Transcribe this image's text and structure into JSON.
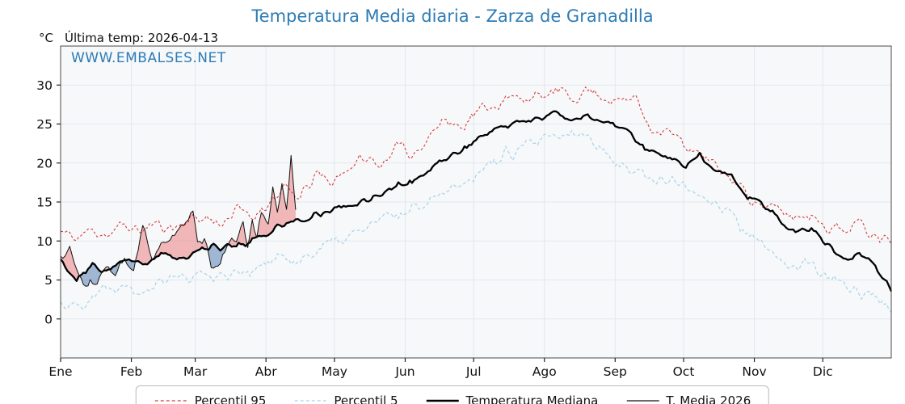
{
  "header": {
    "title": "Temperatura Media diaria - Zarza de Granadilla",
    "unit_label": "°C",
    "last_temp_label": "Última temp: 2026-04-13",
    "watermark": "WWW.EMBALSES.NET",
    "title_color": "#2d7cb5",
    "watermark_color": "#2d7cb5"
  },
  "chart_data": {
    "type": "line",
    "title": "Temperatura Media diaria - Zarza de Granadilla",
    "ylabel": "°C",
    "x_unit": "day_of_year",
    "x_range_days": [
      0,
      364
    ],
    "ylim": [
      -5,
      35
    ],
    "yticks": [
      0,
      5,
      10,
      15,
      20,
      25,
      30
    ],
    "months": [
      "Ene",
      "Feb",
      "Mar",
      "Abr",
      "May",
      "Jun",
      "Jul",
      "Ago",
      "Sep",
      "Oct",
      "Nov",
      "Dic"
    ],
    "month_start_days": [
      0,
      31,
      59,
      90,
      120,
      151,
      181,
      212,
      243,
      273,
      304,
      334
    ],
    "grid": true,
    "background": "#f6f8fa",
    "grid_color": "#e3e7ee",
    "frame_color": "#4a4a4a",
    "legend_position": "bottom",
    "fill_between": {
      "upper_series": "T. Media 2026",
      "lower_series": "Temperatura Mediana",
      "above_color": "rgba(235,105,105,0.45)",
      "below_color": "rgba(90,130,180,0.55)"
    },
    "series": [
      {
        "name": "Percentil 95",
        "style": "dashed",
        "color": "#d93a3a",
        "width": 1.1,
        "x_start": 0,
        "x_step": 7,
        "values": [
          11.2,
          10.3,
          11.5,
          10.8,
          12.0,
          11.3,
          12.2,
          11.6,
          12.8,
          13.0,
          12.2,
          14.0,
          13.0,
          15.0,
          16.5,
          15.5,
          18.5,
          17.5,
          19.5,
          20.5,
          19.8,
          22.0,
          21.0,
          23.5,
          25.5,
          24.8,
          26.5,
          27.5,
          28.0,
          28.6,
          28.2,
          29.2,
          28.4,
          29.4,
          28.6,
          27.8,
          28.5,
          24.5,
          24.0,
          22.5,
          21.0,
          19.5,
          18.0,
          16.0,
          14.5,
          13.8,
          13.0,
          13.5,
          12.0,
          11.4,
          12.2,
          11.0,
          10.3
        ]
      },
      {
        "name": "Percentil 5",
        "style": "dashed",
        "color": "#a7d4e8",
        "width": 1.2,
        "x_start": 0,
        "x_step": 7,
        "values": [
          2.2,
          1.6,
          3.2,
          4.0,
          4.6,
          3.8,
          5.0,
          5.6,
          5.2,
          6.0,
          5.4,
          6.4,
          6.0,
          7.2,
          8.0,
          7.4,
          9.0,
          9.6,
          10.4,
          11.6,
          12.6,
          13.2,
          14.2,
          15.4,
          16.6,
          17.4,
          18.8,
          20.0,
          21.2,
          22.0,
          22.6,
          23.2,
          23.6,
          23.4,
          22.0,
          19.5,
          19.0,
          18.2,
          17.6,
          17.0,
          16.2,
          15.0,
          13.2,
          11.0,
          9.0,
          7.6,
          6.6,
          7.0,
          5.2,
          4.2,
          3.6,
          2.8,
          1.6
        ]
      },
      {
        "name": "Temperatura Mediana",
        "style": "solid",
        "color": "#000000",
        "width": 2.3,
        "x_start": 0,
        "x_step": 7,
        "values": [
          7.5,
          4.8,
          6.8,
          6.2,
          7.4,
          7.0,
          7.8,
          8.2,
          7.8,
          8.8,
          9.4,
          9.0,
          10.2,
          11.0,
          12.0,
          12.6,
          13.4,
          14.0,
          14.4,
          15.2,
          16.0,
          17.0,
          17.6,
          19.0,
          20.5,
          21.5,
          23.0,
          24.2,
          24.8,
          25.4,
          25.8,
          26.4,
          25.6,
          26.2,
          25.2,
          24.6,
          23.0,
          21.4,
          20.6,
          19.6,
          20.8,
          18.6,
          18.8,
          15.4,
          14.6,
          13.0,
          11.0,
          11.8,
          9.6,
          7.6,
          8.2,
          7.0,
          3.8
        ]
      },
      {
        "name": "T. Media 2026",
        "style": "solid",
        "color": "#111111",
        "width": 1.0,
        "x": [
          0,
          4,
          8,
          12,
          16,
          20,
          24,
          28,
          32,
          36,
          40,
          44,
          48,
          52,
          56,
          58,
          60,
          63,
          66,
          70,
          74,
          77,
          80,
          82,
          84,
          86,
          88,
          91,
          93,
          95,
          97,
          99,
          101,
          103
        ],
        "values": [
          7.8,
          9.0,
          5.5,
          4.0,
          4.8,
          6.8,
          5.6,
          7.4,
          6.6,
          12.2,
          8.0,
          9.0,
          10.0,
          11.5,
          13.0,
          14.5,
          10.0,
          10.5,
          6.2,
          7.0,
          9.8,
          10.4,
          12.6,
          9.4,
          12.8,
          10.2,
          13.4,
          12.4,
          16.8,
          13.6,
          17.0,
          14.2,
          21.0,
          13.5
        ]
      }
    ]
  }
}
